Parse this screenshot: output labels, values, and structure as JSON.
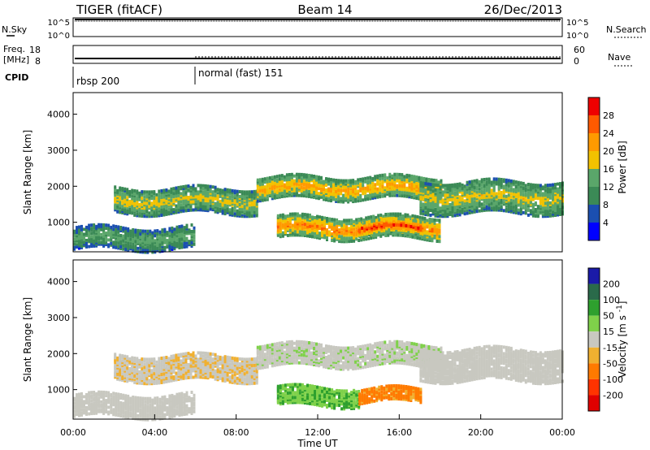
{
  "header": {
    "title": "TIGER (fitACF)",
    "beam": "Beam 14",
    "date": "26/Dec/2013"
  },
  "noise_panel": {
    "left_label": "N.Sky",
    "left_ticks": [
      "10^5",
      "10^0"
    ],
    "right_ticks": [
      "10^5",
      "10^0"
    ],
    "right_label": "N.Search"
  },
  "freq_panel": {
    "left_label_1": "Freq.",
    "left_label_2": "[MHz]",
    "left_ticks": [
      "18",
      "8"
    ],
    "right_ticks": [
      "60",
      "0"
    ],
    "right_label": "Nave",
    "freq_level": 10,
    "nave_level": 15
  },
  "cpid_panel": {
    "label": "CPID",
    "segments": [
      {
        "start": 0,
        "end": 6,
        "text": "rbsp 200"
      },
      {
        "start": 6,
        "end": 24,
        "text": "normal (fast) 151"
      }
    ]
  },
  "x_axis": {
    "label": "Time UT",
    "ticks": [
      "00:00",
      "04:00",
      "08:00",
      "12:00",
      "16:00",
      "20:00",
      "00:00"
    ],
    "range": [
      0,
      24
    ]
  },
  "power_panel": {
    "ylabel": "Slant Range [km]",
    "yticks": [
      "1000",
      "2000",
      "3000",
      "4000"
    ],
    "colorbar_label": "Power [dB]",
    "colorbar_ticks": [
      "4",
      "8",
      "12",
      "16",
      "20",
      "24",
      "28"
    ],
    "colors": [
      "#0000ff",
      "#1b4fb0",
      "#3b8a56",
      "#5aa66a",
      "#f2c200",
      "#ff9a00",
      "#ff5a00",
      "#ee0000"
    ]
  },
  "velocity_panel": {
    "ylabel": "Slant Range [km]",
    "yticks": [
      "1000",
      "2000",
      "3000",
      "4000"
    ],
    "colorbar_label": "Velocity [m s^-1]",
    "colorbar_ticks": [
      "200",
      "100",
      "50",
      "15",
      "-15",
      "-50",
      "-100",
      "-200"
    ],
    "colors": [
      "#1a1aa8",
      "#2a6a4a",
      "#2ea02e",
      "#7fd14a",
      "#c8c8c0",
      "#f0b030",
      "#ff7a00",
      "#ff3300",
      "#e00000"
    ]
  },
  "chart_data": {
    "type": "heatmap",
    "x": "Time UT",
    "xlim": [
      0,
      24
    ],
    "ylim": [
      180,
      4600
    ],
    "power_bands": [
      {
        "start": 0,
        "end": 6,
        "range_low": 300,
        "range_high": 900,
        "level": 14
      },
      {
        "start": 2,
        "end": 9,
        "range_low": 1300,
        "range_high": 2000,
        "level": 18
      },
      {
        "start": 9,
        "end": 18,
        "range_low": 1700,
        "range_high": 2300,
        "level": 22
      },
      {
        "start": 10,
        "end": 18,
        "range_low": 600,
        "range_high": 1200,
        "level": 24
      },
      {
        "start": 14,
        "end": 17,
        "range_low": 700,
        "range_high": 1100,
        "level": 29
      },
      {
        "start": 17,
        "end": 24,
        "range_low": 1300,
        "range_high": 2200,
        "level": 18
      }
    ],
    "velocity_bands": [
      {
        "start": 0,
        "end": 6,
        "range_low": 300,
        "range_high": 900,
        "velocity": 0
      },
      {
        "start": 2,
        "end": 9,
        "range_low": 1300,
        "range_high": 2000,
        "velocity": -10
      },
      {
        "start": 9,
        "end": 18,
        "range_low": 1700,
        "range_high": 2300,
        "velocity": 5
      },
      {
        "start": 10,
        "end": 14,
        "range_low": 600,
        "range_high": 1100,
        "velocity": 45
      },
      {
        "start": 14,
        "end": 17,
        "range_low": 700,
        "range_high": 1100,
        "velocity": -60
      },
      {
        "start": 17,
        "end": 24,
        "range_low": 1300,
        "range_high": 2200,
        "velocity": 0
      }
    ]
  }
}
